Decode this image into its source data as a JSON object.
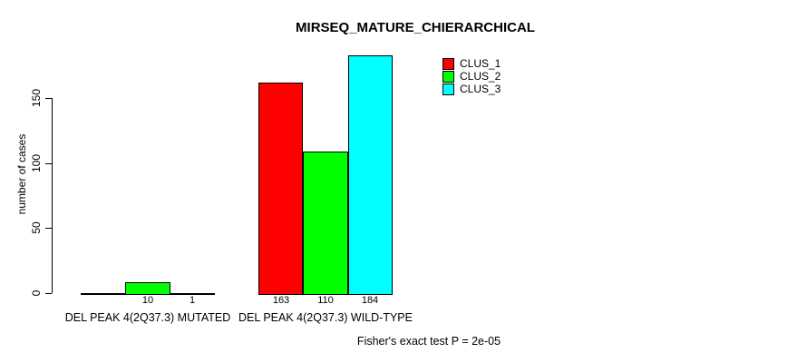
{
  "title": "MIRSEQ_MATURE_CHIERARCHICAL",
  "y_axis": {
    "label": "number of cases",
    "tick_labels": [
      "0",
      "50",
      "100",
      "150"
    ]
  },
  "legend": {
    "items": [
      {
        "label": "CLUS_1",
        "color": "#ff0000"
      },
      {
        "label": "CLUS_2",
        "color": "#00ff00"
      },
      {
        "label": "CLUS_3",
        "color": "#00ffff"
      }
    ]
  },
  "footer": "Fisher's exact test P = 2e-05",
  "chart_data": {
    "type": "bar",
    "title": "MIRSEQ_MATURE_CHIERARCHICAL",
    "xlabel": "",
    "ylabel": "number of cases",
    "categories": [
      "DEL PEAK 4(2Q37.3) MUTATED",
      "DEL PEAK 4(2Q37.3) WILD-TYPE"
    ],
    "series": [
      {
        "name": "CLUS_1",
        "color": "#ff0000",
        "values": [
          0,
          163
        ]
      },
      {
        "name": "CLUS_2",
        "color": "#00ff00",
        "values": [
          10,
          110
        ]
      },
      {
        "name": "CLUS_3",
        "color": "#00ffff",
        "values": [
          1,
          184
        ]
      }
    ],
    "bar_value_labels": [
      [
        "",
        "10",
        "1"
      ],
      [
        "163",
        "110",
        "184"
      ]
    ],
    "yticks": [
      0,
      50,
      100,
      150
    ],
    "ylim": [
      0,
      150
    ],
    "grid": false,
    "legend_position": "top-right",
    "annotation": "Fisher's exact test P = 2e-05"
  }
}
